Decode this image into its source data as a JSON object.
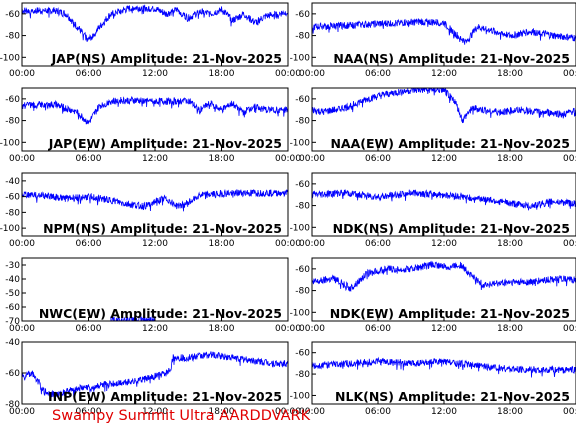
{
  "footer": "Swampy Summit Ultra AARDDVARK",
  "colors": {
    "trace": "#0000ff",
    "footer": "#e00000",
    "axis": "#000000"
  },
  "chart_data": [
    {
      "type": "line",
      "title": "JAP(NS) Amplitude: 21-Nov-2025",
      "xticks": [
        "00:00",
        "06:00",
        "12:00",
        "18:00",
        "00:00"
      ],
      "yticks": [
        -60,
        -80,
        -100
      ],
      "ylim": [
        -108,
        -50
      ],
      "series": [
        {
          "x": [
            0,
            3,
            4,
            6,
            8,
            10,
            12,
            13,
            14,
            15,
            16,
            17,
            18,
            19,
            20,
            21,
            22,
            24
          ],
          "y": [
            -57,
            -57,
            -60,
            -84,
            -60,
            -54,
            -55,
            -60,
            -56,
            -64,
            -58,
            -60,
            -56,
            -66,
            -60,
            -68,
            -62,
            -58
          ]
        }
      ]
    },
    {
      "type": "line",
      "title": "NAA(NS) Amplitude: 21-Nov-2025",
      "xticks": [
        "00:00",
        "06:00",
        "12:00",
        "18:00",
        "00:00"
      ],
      "yticks": [
        -60,
        -80,
        -100
      ],
      "ylim": [
        -108,
        -50
      ],
      "series": [
        {
          "x": [
            0,
            4,
            8,
            10,
            12,
            13,
            14,
            15,
            16,
            18,
            20,
            22,
            24
          ],
          "y": [
            -72,
            -70,
            -68,
            -67,
            -68,
            -78,
            -86,
            -72,
            -74,
            -80,
            -76,
            -80,
            -82
          ]
        }
      ]
    },
    {
      "type": "line",
      "title": "JAP(EW) Amplitude: 21-Nov-2025",
      "xticks": [
        "00:00",
        "06:00",
        "12:00",
        "18:00",
        "00:00"
      ],
      "yticks": [
        -60,
        -80,
        -100
      ],
      "ylim": [
        -108,
        -50
      ],
      "series": [
        {
          "x": [
            0,
            3,
            5,
            6,
            7,
            8,
            10,
            12,
            14,
            15,
            16,
            17,
            18,
            19,
            20,
            21,
            22,
            24
          ],
          "y": [
            -66,
            -65,
            -72,
            -82,
            -66,
            -62,
            -61,
            -62,
            -62,
            -61,
            -70,
            -64,
            -70,
            -64,
            -72,
            -66,
            -70,
            -70
          ]
        }
      ]
    },
    {
      "type": "line",
      "title": "NAA(EW) Amplitude: 21-Nov-2025",
      "xticks": [
        "00:00",
        "06:00",
        "12:00",
        "18:00",
        "00:00"
      ],
      "yticks": [
        -60,
        -80,
        -100
      ],
      "ylim": [
        -108,
        -50
      ],
      "series": [
        {
          "x": [
            0,
            1,
            3,
            5,
            7,
            9,
            11,
            12,
            13,
            13.7,
            14.5,
            15.5,
            17,
            19,
            21,
            23,
            24
          ],
          "y": [
            -70,
            -72,
            -68,
            -60,
            -55,
            -52,
            -51,
            -52,
            -62,
            -80,
            -68,
            -70,
            -72,
            -70,
            -72,
            -74,
            -70
          ]
        }
      ]
    },
    {
      "type": "line",
      "title": "NPM(NS) Amplitude: 21-Nov-2025",
      "xticks": [
        "00:00",
        "06:00",
        "12:00",
        "18:00",
        "00:00"
      ],
      "yticks": [
        -40,
        -60,
        -80,
        -100
      ],
      "ylim": [
        -110,
        -30
      ],
      "series": [
        {
          "x": [
            0,
            2,
            4,
            6,
            8,
            9,
            10,
            11,
            12,
            13,
            14,
            15,
            16,
            18,
            20,
            22,
            24
          ],
          "y": [
            -57,
            -58,
            -62,
            -60,
            -64,
            -68,
            -70,
            -72,
            -66,
            -62,
            -72,
            -68,
            -58,
            -56,
            -55,
            -55,
            -55
          ]
        }
      ]
    },
    {
      "type": "line",
      "title": "NDK(NS) Amplitude: 21-Nov-2025",
      "xticks": [
        "00:00",
        "06:00",
        "12:00",
        "18:00",
        "00:00"
      ],
      "yticks": [
        -60,
        -80,
        -100
      ],
      "ylim": [
        -108,
        -50
      ],
      "series": [
        {
          "x": [
            0,
            3,
            6,
            9,
            12,
            14,
            16,
            18,
            20,
            22,
            24
          ],
          "y": [
            -70,
            -68,
            -72,
            -68,
            -70,
            -72,
            -74,
            -78,
            -80,
            -76,
            -78
          ]
        }
      ]
    },
    {
      "type": "line",
      "title": "NWC(EW) Amplitude: 21-Nov-2025",
      "xticks": [
        "00:00",
        "06:00",
        "12:00",
        "18:00",
        "00:00"
      ],
      "yticks": [
        -30,
        -40,
        -50,
        -60,
        -70
      ],
      "ylim": [
        -70,
        -25
      ],
      "series": [
        {
          "x": [
            8,
            9,
            10,
            11,
            12
          ],
          "y": [
            -69,
            -69,
            -69,
            -69,
            -69
          ]
        }
      ]
    },
    {
      "type": "line",
      "title": "NDK(EW) Amplitude: 21-Nov-2025",
      "xticks": [
        "00:00",
        "06:00",
        "12:00",
        "18:00",
        "00:00"
      ],
      "yticks": [
        -60,
        -80,
        -100
      ],
      "ylim": [
        -108,
        -50
      ],
      "series": [
        {
          "x": [
            0,
            2,
            3.5,
            5,
            7,
            9,
            11,
            12.5,
            13.5,
            14.5,
            15.5,
            16.5,
            18,
            20,
            22,
            24
          ],
          "y": [
            -72,
            -68,
            -78,
            -64,
            -60,
            -60,
            -56,
            -58,
            -56,
            -66,
            -74,
            -74,
            -72,
            -72,
            -69,
            -70
          ]
        }
      ]
    },
    {
      "type": "line",
      "title": "INP(EW) Amplitude: 21-Nov-2025",
      "xticks": [
        "00:00",
        "06:00",
        "12:00",
        "18:00",
        "00:00"
      ],
      "yticks": [
        -40,
        -60,
        -80
      ],
      "ylim": [
        -80,
        -40
      ],
      "series": [
        {
          "x": [
            0,
            1,
            2,
            3,
            5,
            7,
            9,
            11,
            13,
            13.4,
            13.6,
            15,
            17,
            19,
            21,
            23,
            24
          ],
          "y": [
            -62,
            -60,
            -72,
            -74,
            -70,
            -68,
            -66,
            -64,
            -60,
            -58,
            -50,
            -50,
            -48,
            -50,
            -52,
            -54,
            -54
          ]
        }
      ]
    },
    {
      "type": "line",
      "title": "NLK(NS) Amplitude: 21-Nov-2025",
      "xticks": [
        "00:00",
        "06:00",
        "12:00",
        "18:00",
        "00:00"
      ],
      "yticks": [
        -60,
        -80,
        -100
      ],
      "ylim": [
        -108,
        -50
      ],
      "series": [
        {
          "x": [
            0,
            3,
            6,
            9,
            12,
            15,
            18,
            20,
            22,
            24
          ],
          "y": [
            -72,
            -70,
            -68,
            -70,
            -68,
            -72,
            -75,
            -76,
            -76,
            -76
          ]
        }
      ]
    }
  ]
}
